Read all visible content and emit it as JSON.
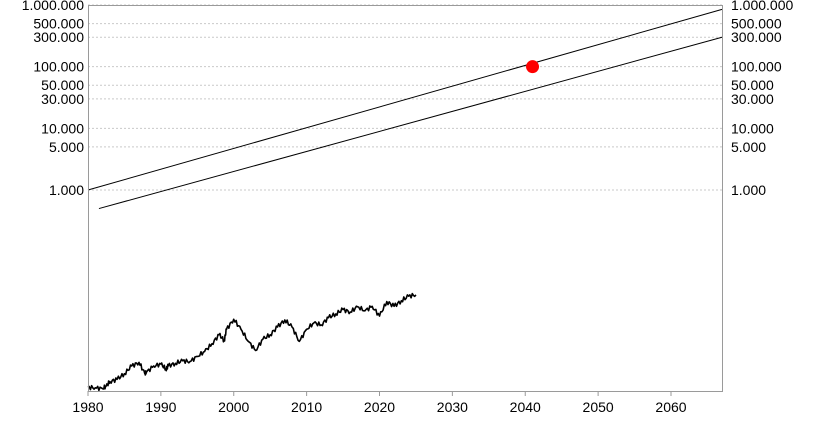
{
  "chart_data": {
    "type": "line",
    "title": "",
    "xlabel": "",
    "ylabel": "",
    "log_scale_y": true,
    "xlim": [
      1980,
      2067
    ],
    "ylim": [
      0.55,
      1000000
    ],
    "grid": "horizontal-dashed",
    "x_ticks": [
      {
        "value": 1980,
        "label": "1980"
      },
      {
        "value": 1990,
        "label": "1990"
      },
      {
        "value": 2000,
        "label": "2000"
      },
      {
        "value": 2010,
        "label": "2010"
      },
      {
        "value": 2020,
        "label": "2020"
      },
      {
        "value": 2030,
        "label": "2030"
      },
      {
        "value": 2040,
        "label": "2040"
      },
      {
        "value": 2050,
        "label": "2050"
      },
      {
        "value": 2060,
        "label": "2060"
      }
    ],
    "y_ticks": [
      {
        "value": 1000000,
        "label": "1.000.000"
      },
      {
        "value": 500000,
        "label": "500.000"
      },
      {
        "value": 300000,
        "label": "300.000"
      },
      {
        "value": 100000,
        "label": "100.000"
      },
      {
        "value": 50000,
        "label": "50.000"
      },
      {
        "value": 30000,
        "label": "30.000"
      },
      {
        "value": 10000,
        "label": "10.000"
      },
      {
        "value": 5000,
        "label": "5.000"
      },
      {
        "value": 1000,
        "label": "1.000"
      }
    ],
    "series": [
      {
        "points": [
          [
            1980,
            0.63
          ],
          [
            1981,
            0.62
          ],
          [
            1982,
            0.6
          ],
          [
            1982.5,
            0.66
          ],
          [
            1983,
            0.78
          ],
          [
            1984,
            0.85
          ],
          [
            1985,
            1.05
          ],
          [
            1986,
            1.4
          ],
          [
            1987,
            1.6
          ],
          [
            1987.8,
            1.05
          ],
          [
            1988,
            1.1
          ],
          [
            1989,
            1.4
          ],
          [
            1990,
            1.5
          ],
          [
            1990.7,
            1.25
          ],
          [
            1991,
            1.4
          ],
          [
            1992,
            1.55
          ],
          [
            1993,
            1.7
          ],
          [
            1994,
            1.65
          ],
          [
            1995,
            2.0
          ],
          [
            1996,
            2.4
          ],
          [
            1997,
            3.2
          ],
          [
            1998,
            4.5
          ],
          [
            1998.7,
            3.6
          ],
          [
            1999,
            5.5
          ],
          [
            2000,
            8.0
          ],
          [
            2001,
            5.5
          ],
          [
            2002,
            3.5
          ],
          [
            2003,
            2.5
          ],
          [
            2004,
            3.8
          ],
          [
            2005,
            4.5
          ],
          [
            2006,
            6.0
          ],
          [
            2007,
            7.8
          ],
          [
            2008,
            6.0
          ],
          [
            2009,
            3.5
          ],
          [
            2010,
            5.5
          ],
          [
            2011,
            7.0
          ],
          [
            2012,
            6.5
          ],
          [
            2013,
            8.5
          ],
          [
            2014,
            9.8
          ],
          [
            2015,
            11.5
          ],
          [
            2016,
            10.5
          ],
          [
            2017,
            12.8
          ],
          [
            2018,
            11.0
          ],
          [
            2019,
            13.0
          ],
          [
            2020,
            9.0
          ],
          [
            2021,
            15.5
          ],
          [
            2022,
            13.0
          ],
          [
            2023,
            16.0
          ],
          [
            2024,
            19.0
          ],
          [
            2025,
            20.0
          ]
        ]
      },
      {
        "points": [
          [
            1980,
            1000
          ],
          [
            2067,
            850000
          ]
        ]
      },
      {
        "points": [
          [
            1981.5,
            500
          ],
          [
            2067,
            300000
          ]
        ]
      }
    ],
    "annotations": [
      {
        "type": "marker",
        "x": 2041,
        "y": 100000,
        "color": "#ff0000"
      }
    ],
    "colors": {
      "price": "#000000",
      "band": "#000000",
      "marker": "#ff0000",
      "grid": "#c9c9c9",
      "frame": "#9a9a9a"
    }
  }
}
